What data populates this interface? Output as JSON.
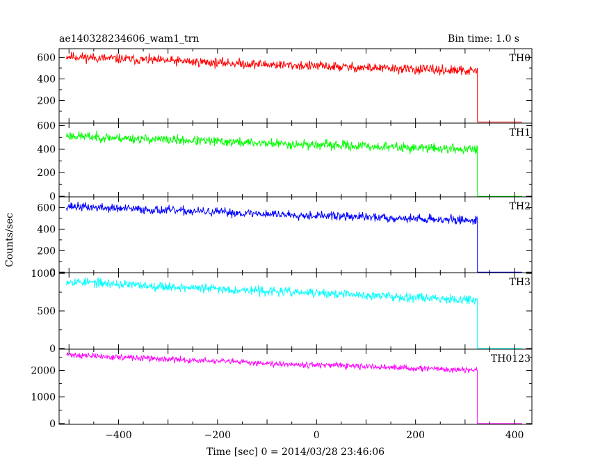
{
  "header": {
    "title": "ae140328234606_wam1_trn",
    "bin_time": "Bin time: 1.0 s"
  },
  "xlabel": "Time [sec] 0 = 2014/03/28 23:46:06",
  "ylabel": "Counts/sec",
  "chart_data": {
    "type": "line",
    "title": "ae140328234606_wam1_trn",
    "xlabel": "Time [sec] 0 = 2014/03/28 23:46:06",
    "ylabel": "Counts/sec",
    "xlim": [
      -520,
      435
    ],
    "x_ticks": [
      -400,
      -200,
      0,
      200,
      400
    ],
    "x_data_range": [
      -505,
      325
    ],
    "x_drop": 325,
    "x_end": 415,
    "grid": false,
    "legend": "none",
    "panels": [
      {
        "label": "TH0",
        "color": "#ff0000",
        "ylim": [
          -10,
          680
        ],
        "yticks": [
          200,
          400,
          600
        ],
        "start": 610,
        "end": 470,
        "noise": 22,
        "tail": 0,
        "seed": 11,
        "x": [
          -500,
          -400,
          -300,
          -200,
          -100,
          0,
          100,
          200,
          300,
          325,
          326,
          415
        ],
        "y": [
          610,
          595,
          575,
          545,
          520,
          495,
          485,
          478,
          470,
          468,
          0,
          0
        ]
      },
      {
        "label": "TH1",
        "color": "#00ff00",
        "ylim": [
          -5,
          620
        ],
        "yticks": [
          0,
          200,
          400,
          600
        ],
        "start": 515,
        "end": 395,
        "noise": 20,
        "tail": 0,
        "seed": 23,
        "x": [
          -500,
          -400,
          -300,
          -200,
          -100,
          0,
          100,
          200,
          300,
          325,
          326,
          415
        ],
        "y": [
          515,
          500,
          485,
          465,
          445,
          428,
          415,
          405,
          398,
          395,
          0,
          0
        ]
      },
      {
        "label": "TH2",
        "color": "#0000ff",
        "ylim": [
          -5,
          700
        ],
        "yticks": [
          0,
          200,
          400,
          600
        ],
        "start": 615,
        "end": 480,
        "noise": 20,
        "tail": 0,
        "seed": 37,
        "x": [
          -500,
          -400,
          -300,
          -200,
          -100,
          0,
          100,
          200,
          300,
          325,
          326,
          415
        ],
        "y": [
          615,
          600,
          585,
          565,
          545,
          525,
          505,
          495,
          485,
          480,
          0,
          0
        ]
      },
      {
        "label": "TH3",
        "color": "#00ffff",
        "ylim": [
          -10,
          1010
        ],
        "yticks": [
          0,
          500,
          1000
        ],
        "start": 900,
        "end": 650,
        "noise": 30,
        "tail": 0,
        "seed": 53,
        "x": [
          -500,
          -400,
          -300,
          -200,
          -100,
          0,
          100,
          200,
          300,
          325,
          326,
          415
        ],
        "y": [
          900,
          870,
          835,
          790,
          750,
          710,
          680,
          665,
          655,
          650,
          0,
          0
        ]
      },
      {
        "label": "TH0123",
        "color": "#ff00ff",
        "ylim": [
          -30,
          2800
        ],
        "yticks": [
          0,
          1000,
          2000
        ],
        "start": 2600,
        "end": 2000,
        "noise": 55,
        "tail": 0,
        "seed": 71,
        "x": [
          -500,
          -400,
          -300,
          -200,
          -100,
          0,
          100,
          200,
          300,
          325,
          326,
          415
        ],
        "y": [
          2600,
          2520,
          2420,
          2320,
          2230,
          2150,
          2080,
          2040,
          2010,
          2000,
          0,
          0
        ]
      }
    ]
  }
}
